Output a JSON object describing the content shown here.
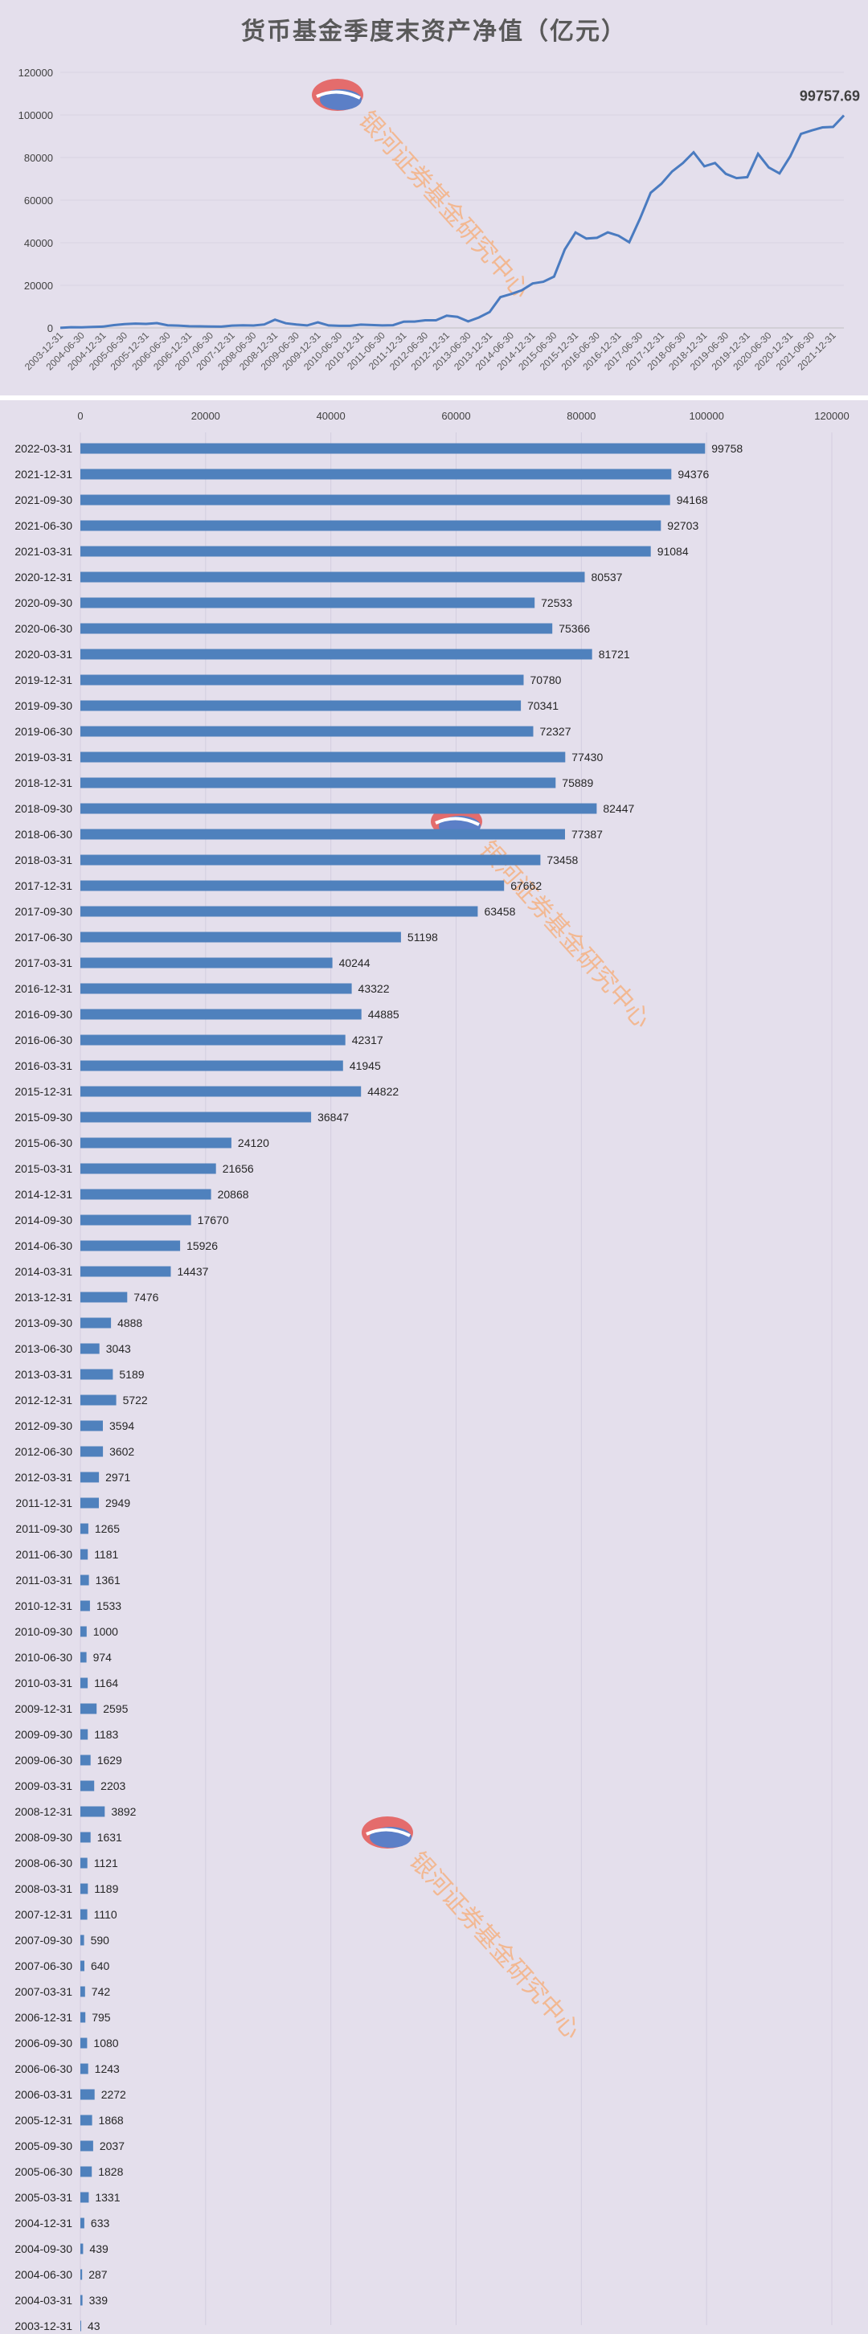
{
  "title": "货币基金季度末资产净值（亿元）",
  "watermark": "银河证券基金研究中心",
  "colors": {
    "line": "#4a7bc0",
    "bar": "#4f81bd",
    "background": "#e4dfec",
    "watermark_text": "#f4b183",
    "logo_red": "#e46c6c",
    "logo_blue": "#5b7fc7"
  },
  "chart_data": [
    {
      "type": "line",
      "title": "货币基金季度末资产净值（亿元）",
      "x": [
        "2003-12-31",
        "2004-03-31",
        "2004-06-30",
        "2004-09-30",
        "2004-12-31",
        "2005-03-31",
        "2005-06-30",
        "2005-09-30",
        "2005-12-31",
        "2006-03-31",
        "2006-06-30",
        "2006-09-30",
        "2006-12-31",
        "2007-03-31",
        "2007-06-30",
        "2007-09-30",
        "2007-12-31",
        "2008-03-31",
        "2008-06-30",
        "2008-09-30",
        "2008-12-31",
        "2009-03-31",
        "2009-06-30",
        "2009-09-30",
        "2009-12-31",
        "2010-03-31",
        "2010-06-30",
        "2010-09-30",
        "2010-12-31",
        "2011-03-31",
        "2011-06-30",
        "2011-09-30",
        "2011-12-31",
        "2012-03-31",
        "2012-06-30",
        "2012-09-30",
        "2012-12-31",
        "2013-03-31",
        "2013-06-30",
        "2013-09-30",
        "2013-12-31",
        "2014-03-31",
        "2014-06-30",
        "2014-09-30",
        "2014-12-31",
        "2015-03-31",
        "2015-06-30",
        "2015-09-30",
        "2015-12-31",
        "2016-03-31",
        "2016-06-30",
        "2016-09-30",
        "2016-12-31",
        "2017-03-31",
        "2017-06-30",
        "2017-09-30",
        "2017-12-31",
        "2018-03-31",
        "2018-06-30",
        "2018-09-30",
        "2018-12-31",
        "2019-03-31",
        "2019-06-30",
        "2019-09-30",
        "2019-12-31",
        "2020-03-31",
        "2020-06-30",
        "2020-09-30",
        "2020-12-31",
        "2021-03-31",
        "2021-06-30",
        "2021-09-30",
        "2021-12-31",
        "2022-03-31"
      ],
      "x_tick_labels": [
        "2003-12-31",
        "2004-06-30",
        "2004-12-31",
        "2005-06-30",
        "2005-12-31",
        "2006-06-30",
        "2006-12-31",
        "2007-06-30",
        "2007-12-31",
        "2008-06-30",
        "2008-12-31",
        "2009-06-30",
        "2009-12-31",
        "2010-06-30",
        "2010-12-31",
        "2011-06-30",
        "2011-12-31",
        "2012-06-30",
        "2012-12-31",
        "2013-06-30",
        "2013-12-31",
        "2014-06-30",
        "2014-12-31",
        "2015-06-30",
        "2015-12-31",
        "2016-06-30",
        "2016-12-31",
        "2017-06-30",
        "2017-12-31",
        "2018-06-30",
        "2018-12-31",
        "2019-06-30",
        "2019-12-31",
        "2020-06-30",
        "2020-12-31",
        "2021-06-30",
        "2021-12-31"
      ],
      "ylim": [
        0,
        120000
      ],
      "y_ticks": [
        "0",
        "20000",
        "40000",
        "60000",
        "80000",
        "100000",
        "120000"
      ],
      "end_label": "99757.69",
      "grid": true,
      "legend": "none"
    },
    {
      "type": "bar",
      "orientation": "horizontal",
      "categories": [
        "2022-03-31",
        "2021-12-31",
        "2021-09-30",
        "2021-06-30",
        "2021-03-31",
        "2020-12-31",
        "2020-09-30",
        "2020-06-30",
        "2020-03-31",
        "2019-12-31",
        "2019-09-30",
        "2019-06-30",
        "2019-03-31",
        "2018-12-31",
        "2018-09-30",
        "2018-06-30",
        "2018-03-31",
        "2017-12-31",
        "2017-09-30",
        "2017-06-30",
        "2017-03-31",
        "2016-12-31",
        "2016-09-30",
        "2016-06-30",
        "2016-03-31",
        "2015-12-31",
        "2015-09-30",
        "2015-06-30",
        "2015-03-31",
        "2014-12-31",
        "2014-09-30",
        "2014-06-30",
        "2014-03-31",
        "2013-12-31",
        "2013-09-30",
        "2013-06-30",
        "2013-03-31",
        "2012-12-31",
        "2012-09-30",
        "2012-06-30",
        "2012-03-31",
        "2011-12-31",
        "2011-09-30",
        "2011-06-30",
        "2011-03-31",
        "2010-12-31",
        "2010-09-30",
        "2010-06-30",
        "2010-03-31",
        "2009-12-31",
        "2009-09-30",
        "2009-06-30",
        "2009-03-31",
        "2008-12-31",
        "2008-09-30",
        "2008-06-30",
        "2008-03-31",
        "2007-12-31",
        "2007-09-30",
        "2007-06-30",
        "2007-03-31",
        "2006-12-31",
        "2006-09-30",
        "2006-06-30",
        "2006-03-31",
        "2005-12-31",
        "2005-09-30",
        "2005-06-30",
        "2005-03-31",
        "2004-12-31",
        "2004-09-30",
        "2004-06-30",
        "2004-03-31",
        "2003-12-31"
      ],
      "values": [
        99758,
        94376,
        94168,
        92703,
        91084,
        80537,
        72533,
        75366,
        81721,
        70780,
        70341,
        72327,
        77430,
        75889,
        82447,
        77387,
        73458,
        67662,
        63458,
        51198,
        40244,
        43322,
        44885,
        42317,
        41945,
        44822,
        36847,
        24120,
        21656,
        20868,
        17670,
        15926,
        14437,
        7476,
        4888,
        3043,
        5189,
        5722,
        3594,
        3602,
        2971,
        2949,
        1265,
        1181,
        1361,
        1533,
        1000,
        974,
        1164,
        2595,
        1183,
        1629,
        2203,
        3892,
        1631,
        1121,
        1189,
        1110,
        590,
        640,
        742,
        795,
        1080,
        1243,
        2272,
        1868,
        2037,
        1828,
        1331,
        633,
        439,
        287,
        339,
        43
      ],
      "xlim": [
        0,
        120000
      ],
      "x_ticks": [
        "0",
        "20000",
        "40000",
        "60000",
        "80000",
        "100000",
        "120000"
      ],
      "grid": true,
      "legend": "none"
    }
  ]
}
